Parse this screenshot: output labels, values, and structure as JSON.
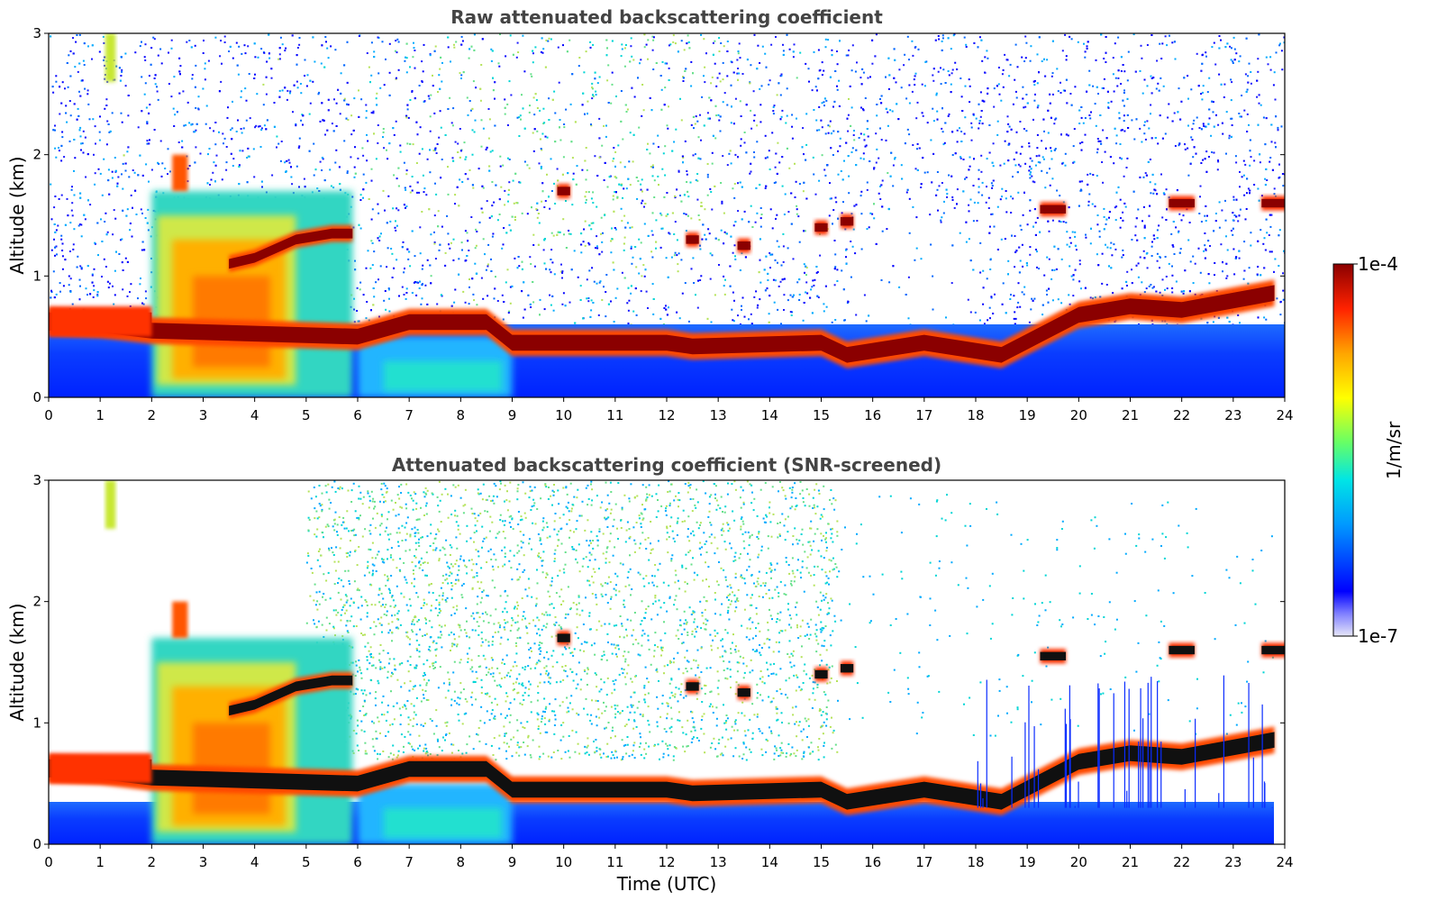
{
  "chart_data": [
    {
      "type": "heatmap",
      "title": "Raw attenuated backscattering coefficient",
      "xlabel": "",
      "ylabel": "Altitude (km)",
      "xlim": [
        0,
        24
      ],
      "ylim": [
        0,
        3
      ],
      "xticks": [
        "0",
        "1",
        "2",
        "3",
        "4",
        "5",
        "6",
        "7",
        "8",
        "9",
        "10",
        "11",
        "12",
        "13",
        "14",
        "15",
        "16",
        "17",
        "18",
        "19",
        "20",
        "21",
        "22",
        "23",
        "24"
      ],
      "yticks": [
        "0",
        "1",
        "2",
        "3"
      ],
      "layers": [
        {
          "name": "boundary-layer-top-aerosol",
          "points": [
            [
              0,
              0.62
            ],
            [
              1,
              0.6
            ],
            [
              2,
              0.55
            ],
            [
              6,
              0.5
            ],
            [
              7,
              0.62
            ],
            [
              8.5,
              0.62
            ],
            [
              9,
              0.45
            ],
            [
              12,
              0.45
            ],
            [
              12.5,
              0.42
            ],
            [
              15,
              0.45
            ],
            [
              15.5,
              0.35
            ],
            [
              17,
              0.45
            ],
            [
              18.5,
              0.35
            ],
            [
              20,
              0.68
            ],
            [
              21,
              0.75
            ],
            [
              22,
              0.72
            ],
            [
              23.8,
              0.86
            ]
          ]
        },
        {
          "name": "residual-cloud-layer",
          "points": [
            [
              3.5,
              1.1
            ],
            [
              4,
              1.15
            ],
            [
              4.8,
              1.3
            ],
            [
              5.5,
              1.35
            ],
            [
              5.9,
              1.35
            ]
          ]
        },
        {
          "name": "midlevel-clouds",
          "points": [
            [
              10,
              1.7
            ],
            [
              12.5,
              1.3
            ],
            [
              13.5,
              1.25
            ],
            [
              15,
              1.4
            ],
            [
              15.5,
              1.45
            ],
            [
              19.5,
              1.55
            ],
            [
              22,
              1.6
            ],
            [
              23.8,
              1.6
            ]
          ]
        }
      ]
    },
    {
      "type": "heatmap",
      "title": "Attenuated backscattering coefficient (SNR-screened)",
      "xlabel": "Time (UTC)",
      "ylabel": "Altitude (km)",
      "xlim": [
        0,
        24
      ],
      "ylim": [
        0,
        3
      ],
      "xticks": [
        "0",
        "1",
        "2",
        "3",
        "4",
        "5",
        "6",
        "7",
        "8",
        "9",
        "10",
        "11",
        "12",
        "13",
        "14",
        "15",
        "16",
        "17",
        "18",
        "19",
        "20",
        "21",
        "22",
        "23",
        "24"
      ],
      "yticks": [
        "0",
        "1",
        "2",
        "3"
      ]
    }
  ],
  "colorbar": {
    "label": "1/m/sr",
    "max_label": "1e-4",
    "min_label": "1e-7",
    "colors": [
      "#e6e6f8",
      "#0000ff",
      "#0099ff",
      "#00e5e5",
      "#66ff66",
      "#ffff00",
      "#ffa500",
      "#ff2200",
      "#8b0000"
    ]
  }
}
